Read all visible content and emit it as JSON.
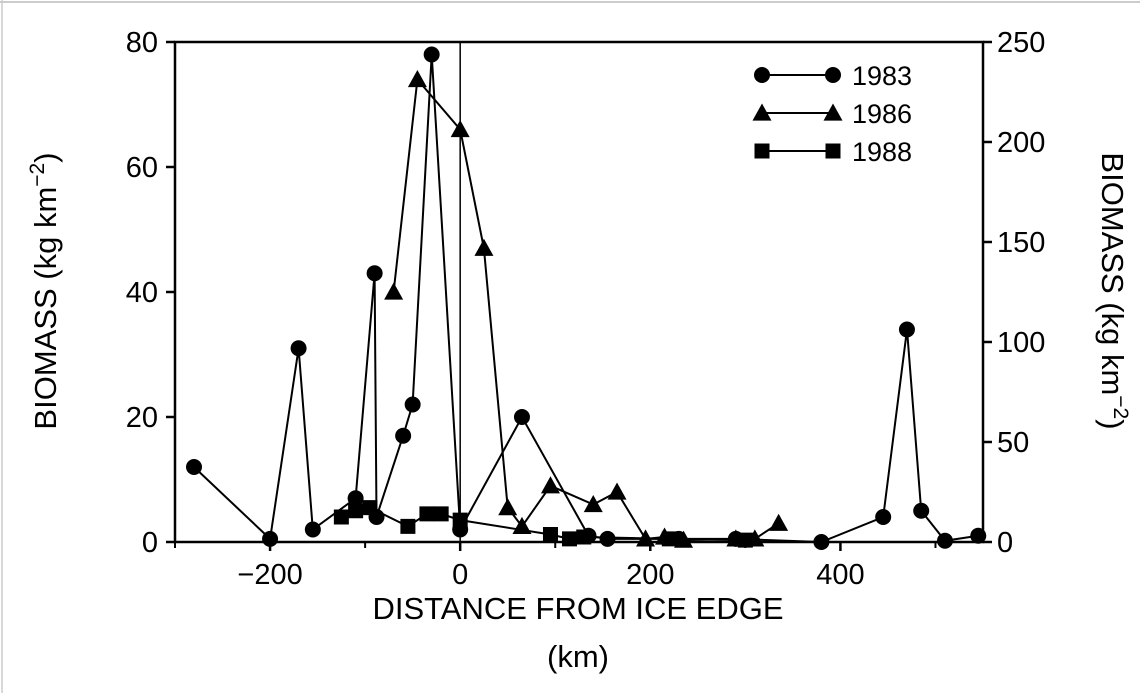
{
  "chart_data": {
    "type": "line",
    "title": "",
    "xlabel_line1": "DISTANCE FROM ICE EDGE",
    "xlabel_line2": "(km)",
    "ylabel_left_text": "BIOMASS (kg km",
    "ylabel_left_exp": "−2",
    "ylabel_left_close": ")",
    "ylabel_right_text": "BIOMASS (kg km",
    "ylabel_right_exp": "−2",
    "ylabel_right_close": ")",
    "xlim": [
      -300,
      550
    ],
    "ylim_left": [
      0,
      80
    ],
    "ylim_right": [
      0,
      250
    ],
    "x_ticks": [
      -200,
      0,
      200,
      400
    ],
    "x_tick_labels": [
      "−200",
      "0",
      "200",
      "400"
    ],
    "y_left_ticks": [
      0,
      20,
      40,
      60,
      80
    ],
    "y_left_tick_labels": [
      "0",
      "20",
      "40",
      "60",
      "80"
    ],
    "y_right_ticks": [
      0,
      50,
      100,
      150,
      200,
      250
    ],
    "y_right_tick_labels": [
      "0",
      "50",
      "100",
      "150",
      "200",
      "250"
    ],
    "grid": false,
    "legend_position": "top-right",
    "reference_line_x": 0,
    "series": [
      {
        "name": "1983",
        "marker": "circle",
        "axis": "left",
        "x": [
          -280,
          -200,
          -170,
          -155,
          -110,
          -90,
          -88,
          -60,
          -50,
          -30,
          0,
          65,
          135,
          155,
          230,
          290,
          380,
          445,
          470,
          485,
          510,
          545
        ],
        "y": [
          12,
          0.5,
          31,
          2,
          7,
          43,
          4,
          17,
          22,
          78,
          2,
          20,
          1,
          0.5,
          0.5,
          0.5,
          0,
          4,
          34,
          5,
          0.2,
          1
        ]
      },
      {
        "name": "1986",
        "marker": "triangle",
        "axis": "left",
        "x": [
          -70,
          -45,
          0,
          25,
          50,
          65,
          95,
          140,
          165,
          195,
          215,
          235,
          290,
          310,
          335
        ],
        "y": [
          40,
          74,
          66,
          47,
          5.5,
          2.5,
          9,
          6,
          8,
          0.5,
          0.8,
          0.3,
          0.5,
          0.5,
          3
        ]
      },
      {
        "name": "1988",
        "marker": "square",
        "axis": "left",
        "x": [
          -125,
          -110,
          -95,
          -55,
          -35,
          -20,
          0,
          95,
          115,
          130,
          220,
          300
        ],
        "y": [
          4,
          5,
          5.5,
          2.5,
          4.5,
          4.5,
          3.5,
          1.2,
          0.5,
          0.8,
          0.5,
          0.3
        ]
      }
    ]
  }
}
